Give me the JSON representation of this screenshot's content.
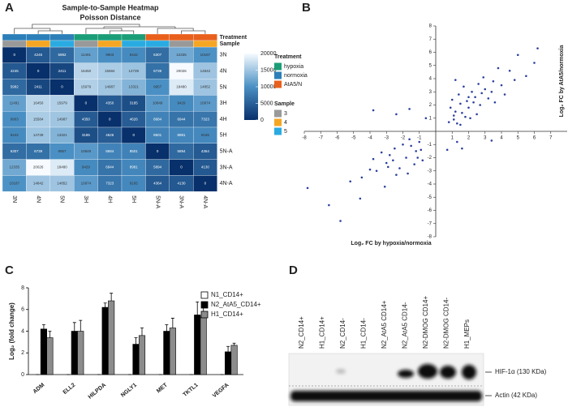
{
  "chart_data": [
    {
      "type": "heatmap",
      "panel_label": "A",
      "title": "Sample-to-Sample Heatmap",
      "subtitle": "Poisson Distance",
      "rows": [
        "3N",
        "4N",
        "5N",
        "3H",
        "4H",
        "5H",
        "5N-A",
        "3N-A",
        "4N-A"
      ],
      "columns": [
        "3N",
        "4N",
        "5N",
        "3H",
        "4H",
        "5H",
        "5N-A",
        "3N-A",
        "4N-A"
      ],
      "values": [
        [
          0,
          4245,
          5982,
          11491,
          9903,
          9442,
          6307,
          12335,
          10187
        ],
        [
          4245,
          0,
          2411,
          16450,
          15584,
          14739,
          6739,
          20026,
          14842
        ],
        [
          5982,
          2411,
          0,
          15979,
          14987,
          13321,
          9957,
          18480,
          14852
        ],
        [
          11491,
          16450,
          15979,
          0,
          4350,
          3185,
          10849,
          9429,
          10974
        ],
        [
          9903,
          15584,
          14987,
          4350,
          0,
          4626,
          8684,
          6944,
          7323
        ],
        [
          9442,
          14739,
          13321,
          3185,
          4626,
          0,
          8501,
          8981,
          9165
        ],
        [
          6307,
          6739,
          9957,
          10849,
          8684,
          8501,
          0,
          5894,
          4364
        ],
        [
          12335,
          20026,
          18480,
          9429,
          6944,
          8981,
          5894,
          0,
          4130
        ],
        [
          10187,
          14842,
          14852,
          10974,
          7323,
          9165,
          4364,
          4130,
          0
        ]
      ],
      "colormap": [
        "#08306b",
        "#4a90c4",
        "#f7fbff"
      ],
      "clim": [
        0,
        20000
      ],
      "cticks": [
        0,
        5000,
        10000,
        15000,
        20000
      ],
      "treatment_title": "Treatment",
      "treatment_legend": [
        {
          "label": "hypoxia",
          "color": "#1b9e77"
        },
        {
          "label": "normoxia",
          "color": "#2c7fb8"
        },
        {
          "label": "AtA5/N",
          "color": "#e8601c"
        }
      ],
      "column_treatment": [
        "normoxia",
        "normoxia",
        "normoxia",
        "hypoxia",
        "hypoxia",
        "hypoxia",
        "AtA5/N",
        "AtA5/N",
        "AtA5/N"
      ],
      "sample_title": "Sample",
      "sample_legend": [
        {
          "label": 3,
          "color": "#999999"
        },
        {
          "label": 4,
          "color": "#f5a623"
        },
        {
          "label": 5,
          "color": "#29abe2"
        }
      ],
      "column_sample": [
        3,
        4,
        5,
        3,
        4,
        5,
        5,
        3,
        4
      ]
    },
    {
      "type": "scatter",
      "panel_label": "B",
      "xlabel": "Log₂ FC  by hypoxia/normoxia",
      "ylabel": "Log₂ FC by AtA5/normoxia",
      "color": "#2b3f9e",
      "xlim": [
        -8,
        8
      ],
      "ylim": [
        -8,
        8
      ],
      "xticks": [
        -8,
        -7,
        -6,
        -5,
        -4,
        -3,
        -2,
        -1,
        1,
        2,
        3,
        4,
        5,
        6,
        7
      ],
      "yticks": [
        -8,
        -7,
        -6,
        -5,
        -4,
        -3,
        -2,
        -1,
        1,
        2,
        3,
        4,
        5,
        6,
        7,
        8
      ],
      "x": [
        1.2,
        1.5,
        2.0,
        2.4,
        1.8,
        3.0,
        2.7,
        1.1,
        1.4,
        3.5,
        2.2,
        1.6,
        4.0,
        2.9,
        1.3,
        2.5,
        3.2,
        1.9,
        0.9,
        4.5,
        5.0,
        6.0,
        3.8,
        2.1,
        1.7,
        1.0,
        2.6,
        3.4,
        5.5,
        1.2,
        6.2,
        4.2,
        0.8,
        1.5,
        2.3,
        2.8,
        3.6,
        1.1,
        2.0,
        4.8,
        -1.2,
        -1.8,
        -2.5,
        -1.0,
        -3.0,
        -2.2,
        -1.5,
        -3.6,
        -2.8,
        -1.3,
        -4.0,
        -2.0,
        -1.7,
        -3.3,
        -0.9,
        -2.6,
        -4.5,
        -1.1,
        -3.8,
        -2.4,
        -5.2,
        -1.6,
        -2.9,
        -0.8,
        -3.1,
        -6.5,
        -7.8,
        -4.6,
        -2.4,
        -3.8,
        -0.6,
        1.3,
        1.6,
        -1.6,
        0.7,
        -5.8,
        3.4
      ],
      "y": [
        1.5,
        2.1,
        1.8,
        2.6,
        1.1,
        3.2,
        2.0,
        0.9,
        2.8,
        3.8,
        3.0,
        1.4,
        3.5,
        4.1,
        0.6,
        1.3,
        2.5,
        2.3,
        1.8,
        4.6,
        5.8,
        5.2,
        4.8,
        1.0,
        3.4,
        2.4,
        3.6,
        3.0,
        4.2,
        3.9,
        6.3,
        2.8,
        0.7,
        0.5,
        2.2,
        2.9,
        2.2,
        1.2,
        2.6,
        3.9,
        -1.5,
        -2.0,
        -1.3,
        -0.8,
        -2.4,
        -2.8,
        -1.1,
        -3.0,
        -1.8,
        -2.5,
        -2.9,
        -1.0,
        -3.2,
        -1.6,
        -1.4,
        -2.2,
        -3.5,
        -2.0,
        -2.1,
        -3.3,
        -3.8,
        -0.6,
        -2.7,
        -2.2,
        -4.2,
        -5.6,
        -4.3,
        -5.1,
        1.3,
        1.6,
        1.0,
        -0.8,
        -1.3,
        1.7,
        -1.4,
        -6.8,
        -0.7
      ]
    },
    {
      "type": "bar",
      "panel_label": "C",
      "ylabel": "Log₂ (fold change)",
      "categories": [
        "ADM",
        "ELL2",
        "HILPDA",
        "NGLY1",
        "MET",
        "TKTL1",
        "VEGFA"
      ],
      "ylim": [
        0,
        8
      ],
      "yticks": [
        0,
        2,
        4,
        6,
        8
      ],
      "series": [
        {
          "name": "N1_CD14+",
          "color": "#ffffff",
          "values": [
            0,
            0,
            0,
            0,
            0,
            0,
            0
          ],
          "errors": [
            0,
            0,
            0,
            0,
            0,
            0,
            0
          ]
        },
        {
          "name": "N2_AtA5_CD14+",
          "color": "#000000",
          "values": [
            4.2,
            4.0,
            6.2,
            2.8,
            4.0,
            5.5,
            2.1
          ],
          "errors": [
            0.4,
            0.8,
            0.4,
            0.6,
            0.6,
            1.2,
            0.5
          ]
        },
        {
          "name": "H1_CD14+",
          "color": "#8c8c8c",
          "values": [
            3.4,
            4.0,
            6.8,
            3.6,
            4.3,
            5.3,
            2.7
          ],
          "errors": [
            0.6,
            1.0,
            0.7,
            0.7,
            0.9,
            1.4,
            0.2
          ]
        }
      ]
    }
  ],
  "blot": {
    "panel_label": "D",
    "lanes": [
      "N2_CD14+",
      "H1_CD14+",
      "N2_CD14-",
      "H1_CD14-",
      "N2_AtA5 CD14+",
      "N2_AtA5 CD14-",
      "N2-DMOG CD14+",
      "N2-DMOG CD14-",
      "H1_MEPs"
    ],
    "bands": [
      "HIF-1α (130 KDa)",
      "Actin (42 KDa)"
    ]
  }
}
